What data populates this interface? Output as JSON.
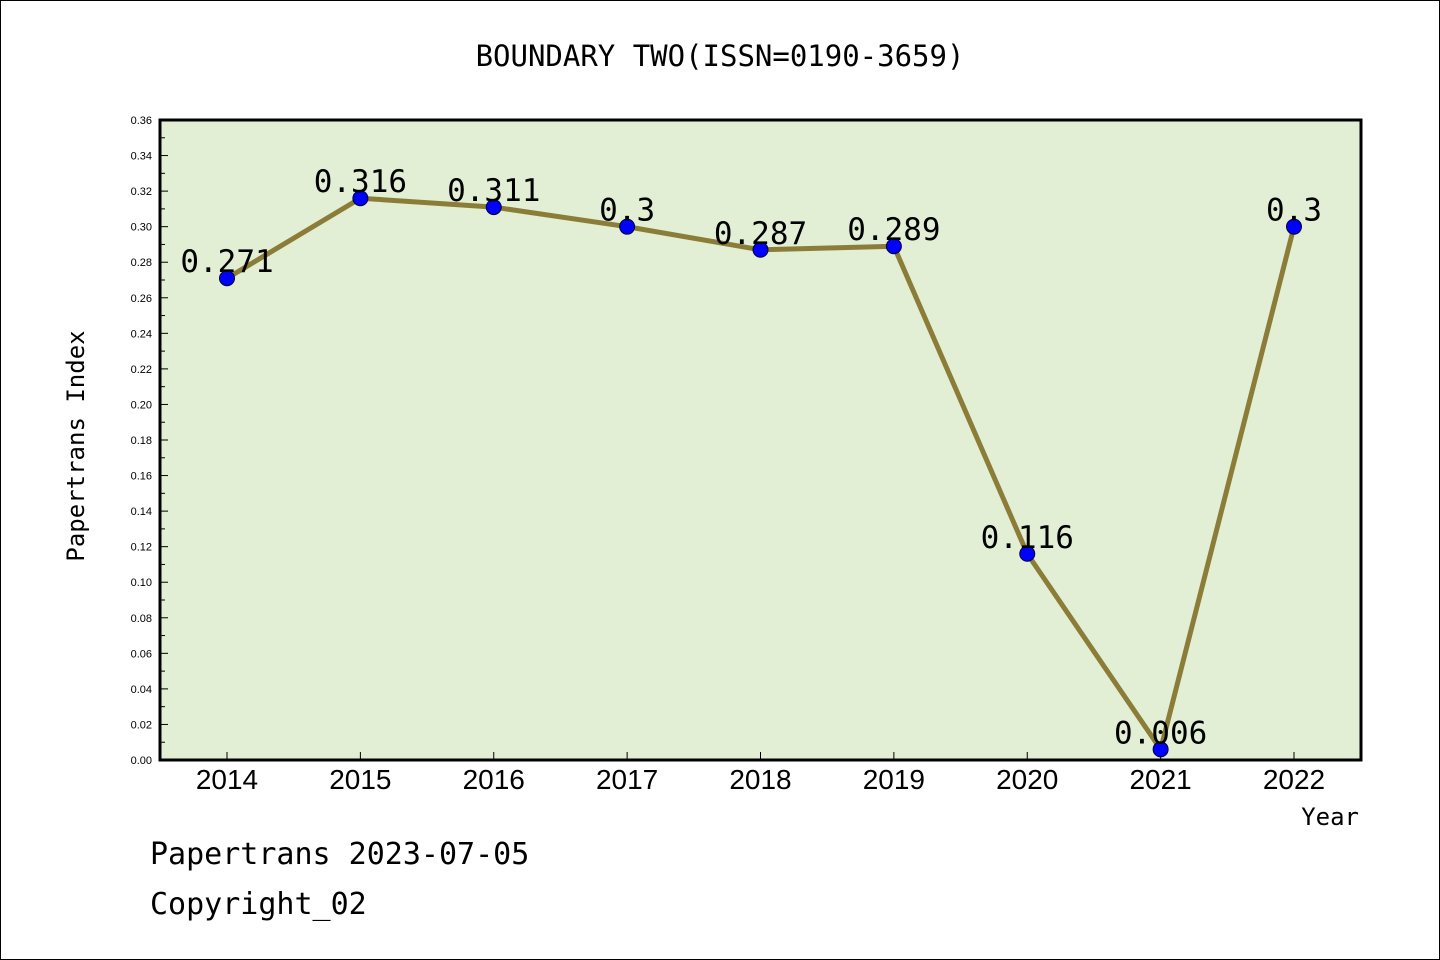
{
  "chart_data": {
    "type": "line",
    "title": "BOUNDARY TWO(ISSN=0190-3659)",
    "xlabel": "Year",
    "ylabel": "Papertrans Index",
    "categories": [
      "2014",
      "2015",
      "2016",
      "2017",
      "2018",
      "2019",
      "2020",
      "2021",
      "2022"
    ],
    "series": [
      {
        "values": [
          0.271,
          0.316,
          0.311,
          0.3,
          0.287,
          0.289,
          0.116,
          0.006,
          0.3
        ],
        "data_labels": [
          "0.271",
          "0.316",
          "0.311",
          "0.3",
          "0.287",
          "0.289",
          "0.116",
          "0.006",
          "0.3"
        ]
      }
    ],
    "ylim": [
      0,
      0.36
    ],
    "yticks": [
      "0.00",
      "0.02",
      "0.04",
      "0.06",
      "0.08",
      "0.10",
      "0.12",
      "0.14",
      "0.16",
      "0.18",
      "0.20",
      "0.22",
      "0.24",
      "0.26",
      "0.28",
      "0.30",
      "0.32",
      "0.34",
      "0.36"
    ],
    "grid": false,
    "colors": {
      "plot_background": "#e2efd5",
      "line": "#8b7d38",
      "marker": "#0000ff"
    }
  },
  "footer": {
    "line1": "Papertrans 2023-07-05",
    "line2": "Copyright_02"
  }
}
